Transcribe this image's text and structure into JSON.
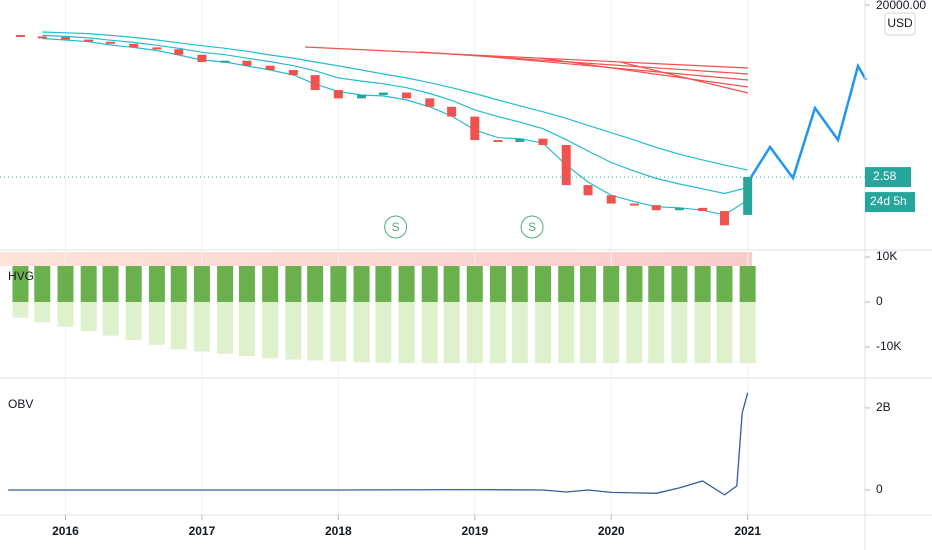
{
  "chart_data": [
    {
      "type": "candlestick",
      "log_scale": true,
      "currency": "USD",
      "countdown": "24d 5h",
      "up_color": "#26a69a",
      "down_color": "#ef5350",
      "xlim": [
        2015.52,
        2021.86
      ],
      "ylim": [
        0.058,
        25900
      ],
      "yticks": [
        {
          "value": 20000,
          "label": "20000.00"
        }
      ],
      "x": [
        2015.67,
        2015.83,
        2016,
        2016.17,
        2016.33,
        2016.5,
        2016.67,
        2016.83,
        2017,
        2017.17,
        2017.33,
        2017.5,
        2017.67,
        2017.83,
        2018,
        2018.17,
        2018.33,
        2018.5,
        2018.67,
        2018.83,
        2019,
        2019.17,
        2019.33,
        2019.5,
        2019.67,
        2019.83,
        2020,
        2020.17,
        2020.33,
        2020.5,
        2020.67,
        2020.83,
        2021
      ],
      "open": [
        4200,
        3900,
        3776,
        3300,
        2950,
        2650,
        2200,
        2000,
        1500,
        1028,
        1100,
        850,
        678,
        520,
        239,
        155,
        185,
        210,
        155,
        100,
        60,
        17.7,
        16,
        19,
        13.7,
        1.7,
        1.0,
        0.65,
        0.6,
        0.46,
        0.52,
        0.44,
        0.36
      ],
      "close": [
        3900,
        3776,
        3300,
        2950,
        2650,
        2200,
        2000,
        1500,
        1028,
        1100,
        850,
        678,
        520,
        239,
        155,
        185,
        210,
        155,
        100,
        60,
        17.7,
        16,
        19,
        13.7,
        1.7,
        1.0,
        0.65,
        0.6,
        0.46,
        0.52,
        0.44,
        0.21,
        2.58
      ],
      "series": [
        {
          "color": "#26bcd0",
          "values": [
            null,
            4900,
            4700,
            4500,
            4100,
            3700,
            3230,
            2800,
            2400,
            2100,
            1800,
            1480,
            1260,
            1030,
            840,
            678,
            550,
            450,
            350,
            270,
            200,
            142,
            105,
            77,
            55,
            38,
            26,
            17.7,
            12,
            8.5,
            6.3,
            4.8,
            3.7
          ]
        },
        {
          "color": "#26bcd0",
          "values": [
            null,
            4100,
            3900,
            3600,
            3200,
            2850,
            2450,
            2100,
            1700,
            1500,
            1250,
            1050,
            850,
            650,
            450,
            380,
            330,
            270,
            200,
            140,
            85,
            60,
            45,
            32,
            18,
            10,
            5.5,
            3.5,
            2.4,
            1.8,
            1.4,
            1.1,
            1.5
          ]
        },
        {
          "color": "#26bcd0",
          "values": [
            null,
            3500,
            3230,
            2950,
            2490,
            2200,
            1870,
            1480,
            1140,
            1030,
            840,
            678,
            522,
            325,
            220,
            185,
            176,
            142,
            100,
            62,
            30,
            20,
            19,
            15,
            4.8,
            2.0,
            1.0,
            0.72,
            0.55,
            0.52,
            0.46,
            0.36,
            0.78
          ]
        }
      ],
      "signals": [
        {
          "x": 2018.42,
          "label": "S"
        },
        {
          "x": 2019.42,
          "label": "S"
        }
      ]
    },
    {
      "type": "bar",
      "label": "HVG",
      "xlim": [
        2015.52,
        2021.86
      ],
      "ylim": [
        -16900,
        11560
      ],
      "yticks": [
        {
          "value": 10000,
          "label": "10K"
        },
        0,
        {
          "value": -10000,
          "label": "-10K"
        }
      ],
      "x": [
        2015.67,
        2015.83,
        2016,
        2016.17,
        2016.33,
        2016.5,
        2016.67,
        2016.83,
        2017,
        2017.17,
        2017.33,
        2017.5,
        2017.67,
        2017.83,
        2018,
        2018.17,
        2018.33,
        2018.5,
        2018.67,
        2018.83,
        2019,
        2019.17,
        2019.33,
        2019.5,
        2019.67,
        2019.83,
        2020,
        2020.17,
        2020.33,
        2020.5,
        2020.67,
        2020.83,
        2021
      ],
      "series": [
        {
          "color": "#dcf0c6",
          "values": [
            -3500,
            -4500,
            -5500,
            -6500,
            -7500,
            -8500,
            -9500,
            -10500,
            -11000,
            -11500,
            -12000,
            -12500,
            -12800,
            -13000,
            -13200,
            -13400,
            -13500,
            -13600,
            -13600,
            -13600,
            -13600,
            -13600,
            -13600,
            -13600,
            -13600,
            -13600,
            -13600,
            -13600,
            -13600,
            -13600,
            -13600,
            -13600,
            -13600
          ]
        },
        {
          "color": "#5aa83a",
          "values": [
            8000,
            8000,
            8000,
            8000,
            8000,
            8000,
            8000,
            8000,
            8000,
            8000,
            8000,
            8000,
            8000,
            8000,
            8000,
            8000,
            8000,
            8000,
            8000,
            8000,
            8000,
            8000,
            8000,
            8000,
            8000,
            8000,
            8000,
            8000,
            8000,
            8000,
            8000,
            8000,
            8000
          ]
        }
      ]
    },
    {
      "type": "line",
      "label": "OBV",
      "color": "#2f5f9e",
      "xlim": [
        2015.52,
        2021.86
      ],
      "ylim": [
        -610000000,
        2730000000
      ],
      "yticks": [
        {
          "value": 2000000000,
          "label": "2B"
        },
        0
      ],
      "xticks": [
        2016,
        2017,
        2018,
        2019,
        2020,
        2021
      ],
      "grid": true,
      "x": [
        2015.58,
        2016,
        2017,
        2018,
        2019,
        2019.5,
        2019.67,
        2019.83,
        2020,
        2020.17,
        2020.33,
        2020.5,
        2020.67,
        2020.83,
        2020.92,
        2020.96,
        2021
      ],
      "values": [
        0,
        0,
        0,
        0,
        10000000,
        0,
        -50000000,
        0,
        -60000000,
        -70000000,
        -80000000,
        50000000,
        220000000,
        -120000000,
        100000000,
        1880000000,
        2370000000
      ]
    }
  ]
}
